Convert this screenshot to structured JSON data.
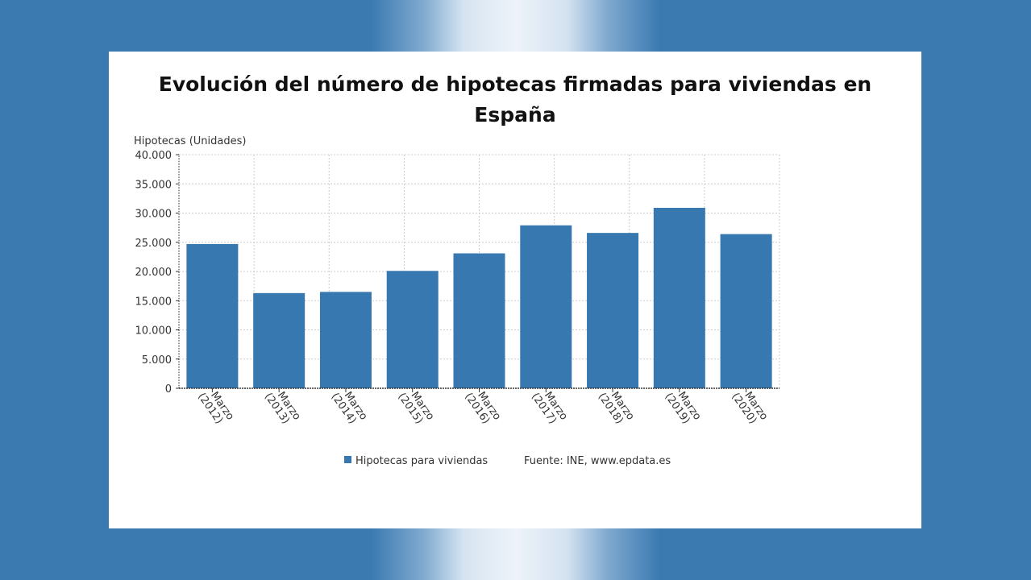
{
  "chart_data": {
    "type": "bar",
    "title": "Evolución del número de hipotecas firmadas para viviendas en España",
    "ylabel": "Hipotecas (Unidades)",
    "xlabel": "",
    "ylim": [
      0,
      40000
    ],
    "yticks": [
      "0",
      "5.000",
      "10.000",
      "15.000",
      "20.000",
      "25.000",
      "30.000",
      "35.000",
      "40.000"
    ],
    "ytick_values": [
      0,
      5000,
      10000,
      15000,
      20000,
      25000,
      30000,
      35000,
      40000
    ],
    "grid": true,
    "legend_position": "bottom",
    "categories": [
      [
        "Marzo",
        "(2012)"
      ],
      [
        "Marzo",
        "(2013)"
      ],
      [
        "Marzo",
        "(2014)"
      ],
      [
        "Marzo",
        "(2015)"
      ],
      [
        "Marzo",
        "(2016)"
      ],
      [
        "Marzo",
        "(2017)"
      ],
      [
        "Marzo",
        "(2018)"
      ],
      [
        "Marzo",
        "(2019)"
      ],
      [
        "Marzo",
        "(2020)"
      ]
    ],
    "series": [
      {
        "name": "Hipotecas para viviendas",
        "color": "#3878b0",
        "values": [
          24700,
          16300,
          16500,
          20100,
          23100,
          27900,
          26600,
          30900,
          26400
        ]
      }
    ],
    "source": "Fuente: INE, www.epdata.es"
  }
}
